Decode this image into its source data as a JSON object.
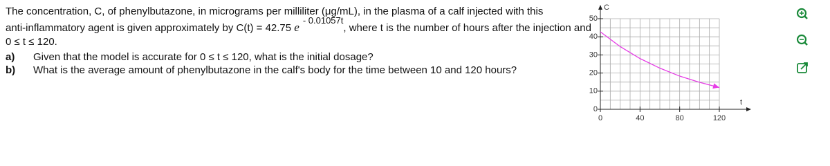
{
  "problem": {
    "intro_1": "The concentration, C, of phenylbutazone, in micrograms per milliliter (μg/mL), in the plasma of a calf injected with this",
    "intro_2": "anti-inflammatory agent is given approximately by C(t) = 42.75",
    "base": "e",
    "exponent": "- 0.01057t",
    "intro_3": ", where t is the number of hours after the injection and",
    "intro_4": "0 ≤ t ≤ 120."
  },
  "questions": [
    {
      "label": "a)",
      "text": "Given that the model is accurate for 0 ≤ t ≤ 120, what is the initial dosage?"
    },
    {
      "label": "b)",
      "text": "What is the average amount of phenylbutazone in the calf's body for the time between 10 and 120 hours?"
    }
  ],
  "chart_data": {
    "type": "line",
    "x_label": "t",
    "y_label": "C",
    "xlim": [
      0,
      120
    ],
    "ylim": [
      0,
      50
    ],
    "xticks": [
      0,
      40,
      80,
      120
    ],
    "yticks": [
      0,
      10,
      20,
      30,
      40,
      50
    ],
    "xgrid": [
      0,
      10,
      20,
      30,
      40,
      50,
      60,
      70,
      80,
      90,
      100,
      110,
      120
    ],
    "ygrid": [
      0,
      5,
      10,
      15,
      20,
      25,
      30,
      35,
      40,
      45,
      50
    ],
    "grid": true,
    "series": [
      {
        "color": "#e63ee6",
        "x": [
          0,
          20,
          40,
          60,
          80,
          100,
          120
        ],
        "values": [
          42.75,
          34.6,
          28.0,
          22.7,
          18.3,
          14.9,
          12.0
        ]
      }
    ]
  }
}
